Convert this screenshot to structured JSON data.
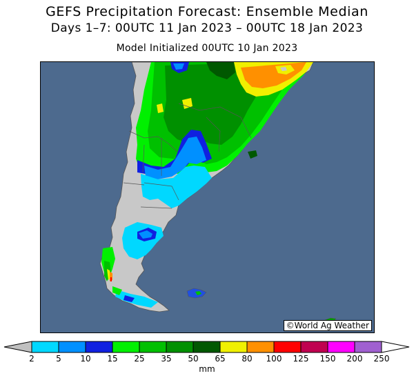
{
  "title": "GEFS Precipitation Forecast: Ensemble Median",
  "subtitle": "Days 1–7: 00UTC 11 Jan 2023 – 00UTC 18 Jan 2023",
  "init": "Model Initialized 00UTC 10 Jan 2023",
  "credit": "©World Ag Weather",
  "colors": {
    "ocean": "#4d6a8e",
    "land_dry": "#c8c8c8",
    "border": "#555555"
  },
  "colorbar": {
    "unit": "mm",
    "ticks": [
      "2",
      "5",
      "10",
      "15",
      "25",
      "35",
      "50",
      "65",
      "80",
      "100",
      "125",
      "150",
      "200",
      "250"
    ],
    "colors": [
      "#00d8ff",
      "#0090ff",
      "#1020e0",
      "#00f000",
      "#00c000",
      "#009000",
      "#005800",
      "#f0f000",
      "#ff9000",
      "#ff0000",
      "#c00050",
      "#ff00ff",
      "#a060d0"
    ],
    "below_color": "#c0c0c0",
    "above_color": "#ffffff"
  }
}
